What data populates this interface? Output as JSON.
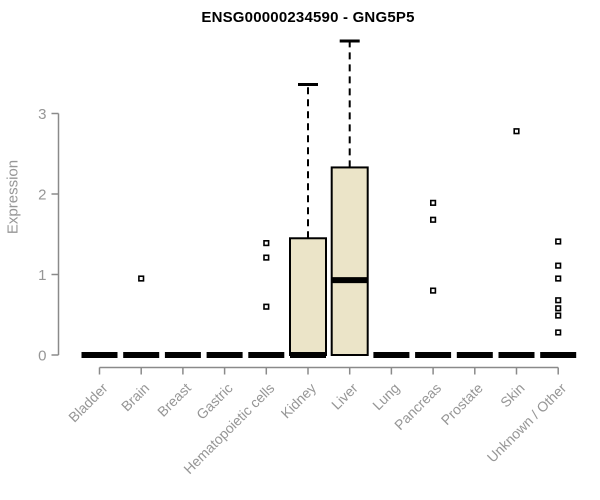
{
  "chart_data": {
    "type": "boxplot",
    "title": "ENSG00000234590 - GNG5P5",
    "ylabel": "Expression",
    "xlabel": "",
    "ylim": [
      0,
      3.9
    ],
    "yticks": [
      0,
      1,
      2,
      3
    ],
    "grid": false,
    "legend": null,
    "categories": [
      "Bladder",
      "Brain",
      "Breast",
      "Gastric",
      "Hematopoietic cells",
      "Kidney",
      "Liver",
      "Lung",
      "Pancreas",
      "Prostate",
      "Skin",
      "Unknown / Other"
    ],
    "series": [
      {
        "name": "Bladder",
        "median": 0,
        "q1": 0,
        "q3": 0,
        "whisker_low": 0,
        "whisker_high": 0,
        "outliers": []
      },
      {
        "name": "Brain",
        "median": 0,
        "q1": 0,
        "q3": 0,
        "whisker_low": 0,
        "whisker_high": 0,
        "outliers": [
          0.95
        ]
      },
      {
        "name": "Breast",
        "median": 0,
        "q1": 0,
        "q3": 0,
        "whisker_low": 0,
        "whisker_high": 0,
        "outliers": []
      },
      {
        "name": "Gastric",
        "median": 0,
        "q1": 0,
        "q3": 0,
        "whisker_low": 0,
        "whisker_high": 0,
        "outliers": []
      },
      {
        "name": "Hematopoietic cells",
        "median": 0,
        "q1": 0,
        "q3": 0,
        "whisker_low": 0,
        "whisker_high": 0,
        "outliers": [
          1.39,
          1.21,
          0.6
        ]
      },
      {
        "name": "Kidney",
        "median": 0,
        "q1": 0,
        "q3": 1.45,
        "whisker_low": 0,
        "whisker_high": 3.36,
        "outliers": []
      },
      {
        "name": "Liver",
        "median": 0.93,
        "q1": 0,
        "q3": 2.33,
        "whisker_low": 0,
        "whisker_high": 3.9,
        "outliers": []
      },
      {
        "name": "Lung",
        "median": 0,
        "q1": 0,
        "q3": 0,
        "whisker_low": 0,
        "whisker_high": 0,
        "outliers": []
      },
      {
        "name": "Pancreas",
        "median": 0,
        "q1": 0,
        "q3": 0,
        "whisker_low": 0,
        "whisker_high": 0,
        "outliers": [
          1.89,
          1.68,
          0.8
        ]
      },
      {
        "name": "Prostate",
        "median": 0,
        "q1": 0,
        "q3": 0,
        "whisker_low": 0,
        "whisker_high": 0,
        "outliers": []
      },
      {
        "name": "Skin",
        "median": 0,
        "q1": 0,
        "q3": 0,
        "whisker_low": 0,
        "whisker_high": 0,
        "outliers": [
          2.78
        ]
      },
      {
        "name": "Unknown / Other",
        "median": 0,
        "q1": 0,
        "q3": 0,
        "whisker_low": 0,
        "whisker_high": 0,
        "outliers": [
          1.41,
          1.11,
          0.95,
          0.68,
          0.58,
          0.49,
          0.28
        ]
      }
    ],
    "colors": {
      "background": "#FFFFFF",
      "box_fill": "#EBE4C8",
      "box_stroke": "#000000",
      "median": "#000000",
      "whisker": "#000000",
      "outlier_stroke": "#000000",
      "outlier_fill": "#FFFFFF",
      "axis": "#8A8A8A",
      "tick_text": "#969696",
      "title_text": "#000000"
    }
  }
}
